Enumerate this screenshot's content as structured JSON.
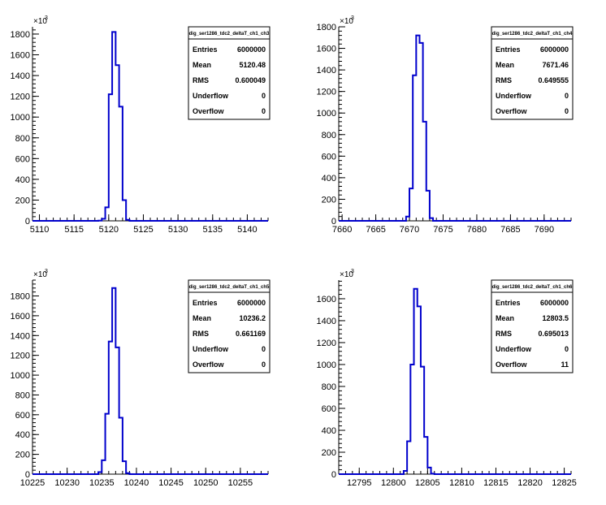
{
  "chart_data": [
    {
      "type": "histogram",
      "y_multiplier_label": "×10",
      "y_multiplier_exp": "3",
      "xlim": [
        5109,
        5143
      ],
      "ylim": [
        0,
        1870
      ],
      "xticks": [
        5110,
        5115,
        5120,
        5125,
        5130,
        5135,
        5140
      ],
      "yticks": [
        0,
        200,
        400,
        600,
        800,
        1000,
        1200,
        1400,
        1600,
        1800
      ],
      "bin_width": 0.5,
      "bins": [
        [
          5118.5,
          2
        ],
        [
          5119,
          20
        ],
        [
          5119.5,
          130
        ],
        [
          5120,
          1220
        ],
        [
          5120.5,
          1820
        ],
        [
          5121,
          1500
        ],
        [
          5121.5,
          1100
        ],
        [
          5122,
          200
        ],
        [
          5122.5,
          10
        ]
      ],
      "stats": {
        "title": "dig_ser1286_tdc2_deltaT_ch1_ch3",
        "rows": [
          {
            "key": "Entries",
            "value": "6000000"
          },
          {
            "key": "Mean",
            "value": "5120.48"
          },
          {
            "key": "RMS",
            "value": "0.600049"
          },
          {
            "key": "Underflow",
            "value": "0"
          },
          {
            "key": "Overflow",
            "value": "0"
          }
        ]
      }
    },
    {
      "type": "histogram",
      "y_multiplier_label": "×10",
      "y_multiplier_exp": "3",
      "xlim": [
        7659.5,
        7694
      ],
      "ylim": [
        0,
        1800
      ],
      "xticks": [
        7660,
        7665,
        7670,
        7675,
        7680,
        7685,
        7690
      ],
      "yticks": [
        0,
        200,
        400,
        600,
        800,
        1000,
        1200,
        1400,
        1600,
        1800
      ],
      "bin_width": 0.5,
      "bins": [
        [
          7669.5,
          40
        ],
        [
          7670,
          300
        ],
        [
          7670.5,
          1350
        ],
        [
          7671,
          1720
        ],
        [
          7671.5,
          1650
        ],
        [
          7672,
          920
        ],
        [
          7672.5,
          280
        ],
        [
          7673,
          25
        ]
      ],
      "stats": {
        "title": "dig_ser1286_tdc2_deltaT_ch1_ch4",
        "rows": [
          {
            "key": "Entries",
            "value": "6000000"
          },
          {
            "key": "Mean",
            "value": "7671.46"
          },
          {
            "key": "RMS",
            "value": "0.649555"
          },
          {
            "key": "Underflow",
            "value": "0"
          },
          {
            "key": "Overflow",
            "value": "0"
          }
        ]
      }
    },
    {
      "type": "histogram",
      "y_multiplier_label": "×10",
      "y_multiplier_exp": "3",
      "xlim": [
        10225,
        10259
      ],
      "ylim": [
        0,
        1960
      ],
      "xticks": [
        10225,
        10230,
        10235,
        10240,
        10245,
        10250,
        10255
      ],
      "yticks": [
        0,
        200,
        400,
        600,
        800,
        1000,
        1200,
        1400,
        1600,
        1800
      ],
      "bin_width": 0.5,
      "bins": [
        [
          10234.5,
          20
        ],
        [
          10235,
          140
        ],
        [
          10235.5,
          610
        ],
        [
          10236,
          1340
        ],
        [
          10236.5,
          1880
        ],
        [
          10237,
          1280
        ],
        [
          10237.5,
          570
        ],
        [
          10238,
          130
        ],
        [
          10238.5,
          10
        ]
      ],
      "stats": {
        "title": "dig_ser1286_tdc2_deltaT_ch1_ch5",
        "rows": [
          {
            "key": "Entries",
            "value": "6000000"
          },
          {
            "key": "Mean",
            "value": "10236.2"
          },
          {
            "key": "RMS",
            "value": "0.661169"
          },
          {
            "key": "Underflow",
            "value": "0"
          },
          {
            "key": "Overflow",
            "value": "0"
          }
        ]
      }
    },
    {
      "type": "histogram",
      "y_multiplier_label": "×10",
      "y_multiplier_exp": "3",
      "xlim": [
        12792,
        12826
      ],
      "ylim": [
        0,
        1770
      ],
      "xticks": [
        12795,
        12800,
        12805,
        12810,
        12815,
        12820,
        12825
      ],
      "yticks": [
        0,
        200,
        400,
        600,
        800,
        1000,
        1200,
        1400,
        1600
      ],
      "bin_width": 0.5,
      "bins": [
        [
          12801.5,
          30
        ],
        [
          12802,
          300
        ],
        [
          12802.5,
          1000
        ],
        [
          12803,
          1690
        ],
        [
          12803.5,
          1530
        ],
        [
          12804,
          980
        ],
        [
          12804.5,
          340
        ],
        [
          12805,
          60
        ],
        [
          12805.5,
          5
        ]
      ],
      "stats": {
        "title": "dig_ser1286_tdc2_deltaT_ch1_ch6",
        "rows": [
          {
            "key": "Entries",
            "value": "6000000"
          },
          {
            "key": "Mean",
            "value": "12803.5"
          },
          {
            "key": "RMS",
            "value": "0.695013"
          },
          {
            "key": "Underflow",
            "value": "0"
          },
          {
            "key": "Overflow",
            "value": "11"
          }
        ]
      }
    }
  ]
}
